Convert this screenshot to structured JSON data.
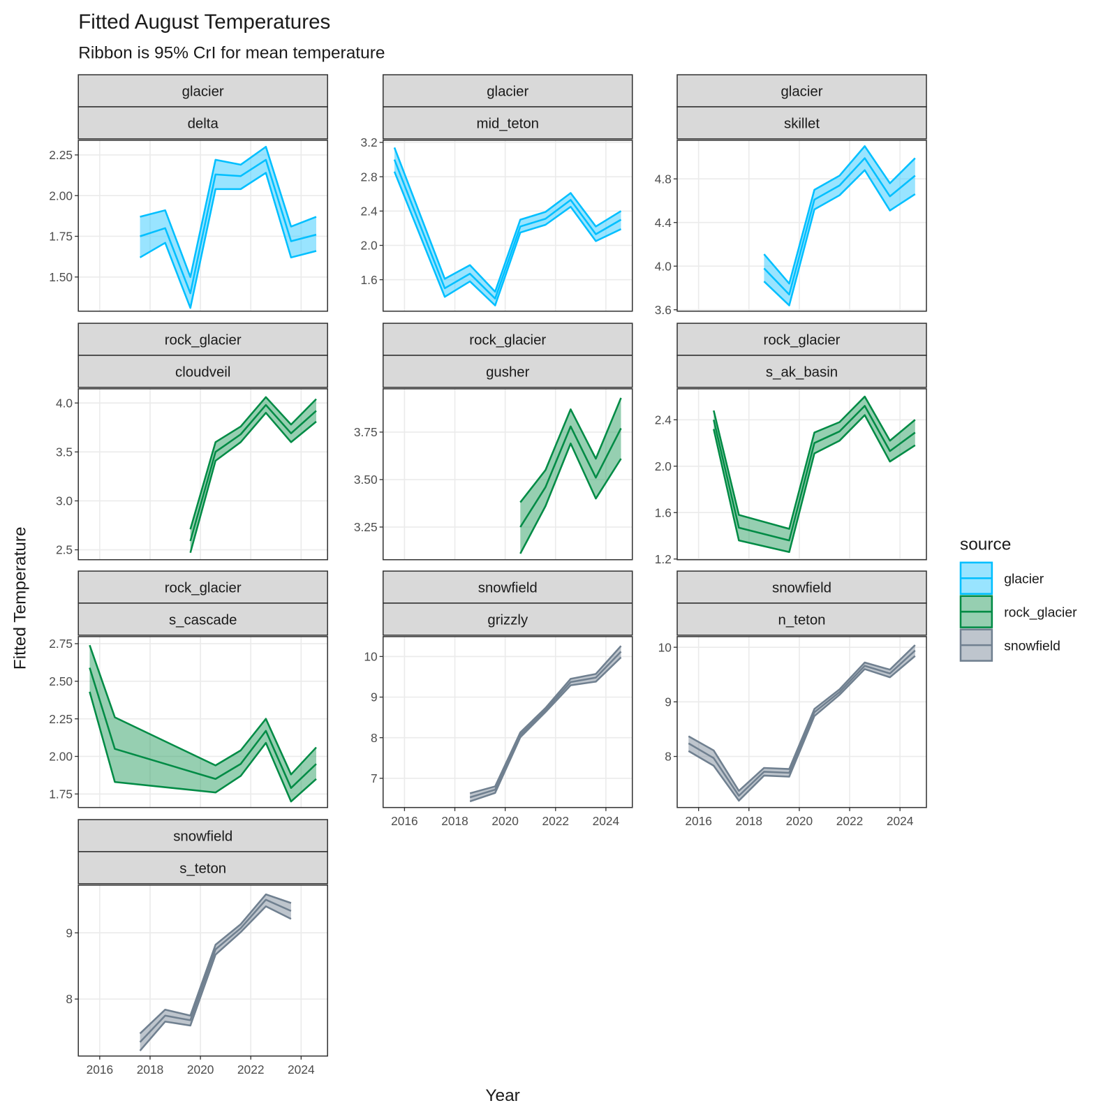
{
  "title": "Fitted August Temperatures",
  "subtitle": "Ribbon is 95% CrI for mean temperature",
  "x_label": "Year",
  "y_label": "Fitted Temperature",
  "legend": {
    "title": "source",
    "entries": [
      {
        "name": "glacier",
        "color": "#00bfff",
        "fill": "#33c9ff"
      },
      {
        "name": "rock_glacier",
        "color": "#008b45",
        "fill": "#2e9f63"
      },
      {
        "name": "snowfield",
        "color": "#708090",
        "fill": "#7d8c9c"
      }
    ]
  },
  "chart_data": [
    {
      "type": "ribbon",
      "facet": [
        "glacier",
        "delta"
      ],
      "x": [
        2017.6,
        2018.6,
        2019.6,
        2020.6,
        2021.6,
        2022.6,
        2023.6,
        2024.6
      ],
      "values": [
        1.75,
        1.8,
        1.4,
        2.13,
        2.12,
        2.22,
        1.72,
        1.76
      ],
      "upper": [
        1.87,
        1.91,
        1.5,
        2.22,
        2.19,
        2.3,
        1.81,
        1.87
      ],
      "lower": [
        1.62,
        1.71,
        1.31,
        2.04,
        2.04,
        2.14,
        1.62,
        1.66
      ],
      "xlim": [
        2015.15,
        2025.05
      ],
      "xticks": [
        2016,
        2018,
        2020,
        2022,
        2024
      ],
      "x_tick_labels": false,
      "ylim": [
        1.29,
        2.34
      ],
      "yticks": [
        {
          "value": 1.5,
          "label": "1.50"
        },
        {
          "value": 1.75,
          "label": "1.75"
        },
        {
          "value": 2,
          "label": "2.00"
        },
        {
          "value": 2.25,
          "label": "2.25"
        }
      ],
      "grid": true
    },
    {
      "type": "ribbon",
      "facet": [
        "glacier",
        "mid_teton"
      ],
      "x": [
        2015.6,
        2017.6,
        2018.6,
        2019.6,
        2020.6,
        2021.6,
        2022.6,
        2023.6,
        2024.6
      ],
      "values": [
        3.0,
        1.5,
        1.67,
        1.38,
        2.22,
        2.31,
        2.53,
        2.13,
        2.3
      ],
      "upper": [
        3.14,
        1.61,
        1.77,
        1.46,
        2.3,
        2.39,
        2.61,
        2.22,
        2.4
      ],
      "lower": [
        2.86,
        1.4,
        1.58,
        1.3,
        2.15,
        2.24,
        2.45,
        2.05,
        2.19
      ],
      "xlim": [
        2015.15,
        2025.05
      ],
      "xticks": [
        2016,
        2018,
        2020,
        2022,
        2024
      ],
      "x_tick_labels": false,
      "ylim": [
        1.233,
        3.225
      ],
      "yticks": [
        1.6,
        {
          "value": 2,
          "label": "2.0"
        },
        2.4,
        2.8,
        3.2
      ],
      "grid": true
    },
    {
      "type": "ribbon",
      "facet": [
        "glacier",
        "skillet"
      ],
      "x": [
        2018.6,
        2019.6,
        2020.6,
        2021.6,
        2022.6,
        2023.6,
        2024.6
      ],
      "values": [
        3.98,
        3.74,
        4.61,
        4.74,
        4.99,
        4.64,
        4.83
      ],
      "upper": [
        4.11,
        3.84,
        4.7,
        4.83,
        5.1,
        4.76,
        4.99
      ],
      "lower": [
        3.86,
        3.64,
        4.52,
        4.65,
        4.88,
        4.51,
        4.66
      ],
      "xlim": [
        2015.15,
        2025.05
      ],
      "xticks": [
        2016,
        2018,
        2020,
        2022,
        2024
      ],
      "x_tick_labels": false,
      "ylim": [
        3.587,
        5.154
      ],
      "yticks": [
        3.6,
        {
          "value": 4,
          "label": "4.0"
        },
        4.4,
        4.8
      ],
      "grid": true
    },
    {
      "type": "ribbon",
      "facet": [
        "rock_glacier",
        "cloudveil"
      ],
      "x": [
        2019.6,
        2020.6,
        2021.6,
        2022.6,
        2023.6,
        2024.6
      ],
      "values": [
        2.59,
        3.5,
        3.68,
        3.98,
        3.69,
        3.92
      ],
      "upper": [
        2.71,
        3.6,
        3.76,
        4.06,
        3.78,
        4.04
      ],
      "lower": [
        2.47,
        3.41,
        3.6,
        3.9,
        3.6,
        3.81
      ],
      "xlim": [
        2015.15,
        2025.05
      ],
      "xticks": [
        2016,
        2018,
        2020,
        2022,
        2024
      ],
      "x_tick_labels": false,
      "ylim": [
        2.399,
        4.145
      ],
      "yticks": [
        2.5,
        {
          "value": 3,
          "label": "3.0"
        },
        3.5,
        {
          "value": 4,
          "label": "4.0"
        }
      ],
      "grid": true
    },
    {
      "type": "ribbon",
      "facet": [
        "rock_glacier",
        "gusher"
      ],
      "x": [
        2020.6,
        2021.6,
        2022.6,
        2023.6,
        2024.6
      ],
      "values": [
        3.25,
        3.46,
        3.78,
        3.51,
        3.77
      ],
      "upper": [
        3.38,
        3.55,
        3.87,
        3.61,
        3.93
      ],
      "lower": [
        3.11,
        3.36,
        3.69,
        3.4,
        3.61
      ],
      "xlim": [
        2015.15,
        2025.05
      ],
      "xticks": [
        2016,
        2018,
        2020,
        2022,
        2024
      ],
      "x_tick_labels": false,
      "ylim": [
        3.078,
        3.978
      ],
      "yticks": [
        3.25,
        {
          "value": 3.5,
          "label": "3.50"
        },
        3.75
      ],
      "grid": true
    },
    {
      "type": "ribbon",
      "facet": [
        "rock_glacier",
        "s_ak_basin"
      ],
      "x": [
        2016.6,
        2017.6,
        2019.6,
        2020.6,
        2021.6,
        2022.6,
        2023.6,
        2024.6
      ],
      "values": [
        2.4,
        1.47,
        1.36,
        2.2,
        2.3,
        2.52,
        2.13,
        2.29
      ],
      "upper": [
        2.48,
        1.58,
        1.46,
        2.29,
        2.38,
        2.6,
        2.22,
        2.4
      ],
      "lower": [
        2.32,
        1.36,
        1.26,
        2.11,
        2.22,
        2.44,
        2.04,
        2.18
      ],
      "xlim": [
        2015.15,
        2025.05
      ],
      "xticks": [
        2016,
        2018,
        2020,
        2022,
        2024
      ],
      "x_tick_labels": false,
      "ylim": [
        1.194,
        2.667
      ],
      "yticks": [
        1.2,
        1.6,
        {
          "value": 2,
          "label": "2.0"
        },
        2.4
      ],
      "grid": true
    },
    {
      "type": "ribbon",
      "facet": [
        "rock_glacier",
        "s_cascade"
      ],
      "x": [
        2015.6,
        2016.6,
        2020.6,
        2021.6,
        2022.6,
        2023.6,
        2024.6
      ],
      "values": [
        2.59,
        2.05,
        1.85,
        1.95,
        2.17,
        1.79,
        1.95
      ],
      "upper": [
        2.74,
        2.26,
        1.94,
        2.04,
        2.25,
        1.88,
        2.06
      ],
      "lower": [
        2.43,
        1.83,
        1.76,
        1.87,
        2.09,
        1.7,
        1.85
      ],
      "xlim": [
        2015.15,
        2025.05
      ],
      "xticks": [
        2016,
        2018,
        2020,
        2022,
        2024
      ],
      "x_tick_labels": false,
      "ylim": [
        1.66,
        2.797
      ],
      "yticks": [
        1.75,
        {
          "value": 2,
          "label": "2.00"
        },
        2.25,
        {
          "value": 2.5,
          "label": "2.50"
        },
        2.75
      ],
      "grid": true
    },
    {
      "type": "ribbon",
      "facet": [
        "snowfield",
        "grizzly"
      ],
      "x": [
        2018.6,
        2019.6,
        2020.6,
        2021.6,
        2022.6,
        2023.6,
        2024.6
      ],
      "values": [
        6.53,
        6.72,
        8.07,
        8.68,
        9.37,
        9.48,
        10.12
      ],
      "upper": [
        6.63,
        6.8,
        8.13,
        8.73,
        9.45,
        9.57,
        10.26
      ],
      "lower": [
        6.43,
        6.64,
        8.01,
        8.63,
        9.29,
        9.38,
        9.98
      ],
      "xlim": [
        2015.15,
        2025.05
      ],
      "xticks": [
        2016,
        2018,
        2020,
        2022,
        2024
      ],
      "x_tick_labels": true,
      "ylim": [
        6.28,
        10.49
      ],
      "yticks": [
        7,
        8,
        9,
        10
      ],
      "grid": true
    },
    {
      "type": "ribbon",
      "facet": [
        "snowfield",
        "n_teton"
      ],
      "x": [
        2015.6,
        2016.6,
        2017.6,
        2018.6,
        2019.6,
        2020.6,
        2021.6,
        2022.6,
        2023.6,
        2024.6
      ],
      "values": [
        8.24,
        7.97,
        7.28,
        7.72,
        7.7,
        8.81,
        9.18,
        9.66,
        9.52,
        9.94
      ],
      "upper": [
        8.37,
        8.11,
        7.37,
        7.79,
        7.77,
        8.87,
        9.23,
        9.72,
        9.59,
        10.04
      ],
      "lower": [
        8.1,
        7.83,
        7.19,
        7.65,
        7.63,
        8.74,
        9.13,
        9.6,
        9.45,
        9.84
      ],
      "xlim": [
        2015.15,
        2025.05
      ],
      "xticks": [
        2016,
        2018,
        2020,
        2022,
        2024
      ],
      "x_tick_labels": true,
      "ylim": [
        7.065,
        10.195
      ],
      "yticks": [
        8,
        9,
        10
      ],
      "grid": true
    },
    {
      "type": "ribbon",
      "facet": [
        "snowfield",
        "s_teton"
      ],
      "x": [
        2017.6,
        2018.6,
        2019.6,
        2020.6,
        2021.6,
        2022.6,
        2023.6
      ],
      "values": [
        7.35,
        7.75,
        7.68,
        8.75,
        9.07,
        9.5,
        9.33
      ],
      "upper": [
        7.48,
        7.84,
        7.75,
        8.82,
        9.13,
        9.58,
        9.45
      ],
      "lower": [
        7.22,
        7.66,
        7.6,
        8.67,
        9.01,
        9.4,
        9.21
      ],
      "xlim": [
        2015.15,
        2025.05
      ],
      "xticks": [
        2016,
        2018,
        2020,
        2022,
        2024
      ],
      "x_tick_labels": true,
      "ylim": [
        7.14,
        9.72
      ],
      "yticks": [
        8,
        9
      ],
      "grid": true
    }
  ]
}
